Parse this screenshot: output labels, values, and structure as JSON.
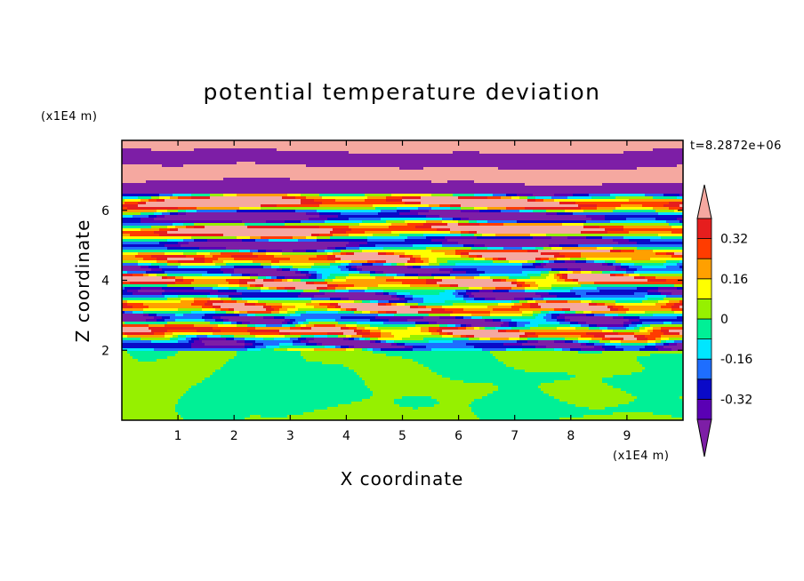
{
  "chart_data": {
    "type": "heatmap",
    "title": "potential temperature deviation",
    "xlabel": "X coordinate",
    "ylabel": "Z coordinate",
    "x_unit": "(x1E4 m)",
    "y_unit": "(x1E4 m)",
    "time_label": "t=8.2872e+06",
    "xlim": [
      0,
      10
    ],
    "ylim": [
      0,
      8
    ],
    "x_ticks": [
      1,
      2,
      3,
      4,
      5,
      6,
      7,
      8,
      9
    ],
    "y_ticks": [
      2,
      4,
      6
    ],
    "x_tick_labels": [
      "1",
      "2",
      "3",
      "4",
      "5",
      "6",
      "7",
      "8",
      "9"
    ],
    "y_tick_labels": [
      "2",
      "4",
      "6"
    ],
    "colorbar": {
      "levels": [
        -0.4,
        -0.32,
        -0.24,
        -0.16,
        -0.08,
        0,
        0.08,
        0.16,
        0.24,
        0.32,
        0.4
      ],
      "colors": [
        "#7d1ea6",
        "#5a00b4",
        "#0a0ac8",
        "#1e6eff",
        "#00e6ff",
        "#00f096",
        "#96f000",
        "#ffff00",
        "#ffa000",
        "#ff3c00",
        "#e61e1e",
        "#f5a8a0"
      ],
      "tick_values": [
        0.32,
        0.16,
        0,
        -0.16,
        -0.32
      ],
      "tick_labels": [
        "0.32",
        "0.16",
        "0",
        "-0.16",
        "-0.32"
      ],
      "extend": "both"
    },
    "regions": [
      {
        "z_range": [
          0,
          1.95
        ],
        "description_values": [
          0,
          0.08
        ]
      },
      {
        "z_range": [
          1.95,
          8
        ],
        "description_values": [
          -0.4,
          0.4
        ]
      }
    ]
  }
}
